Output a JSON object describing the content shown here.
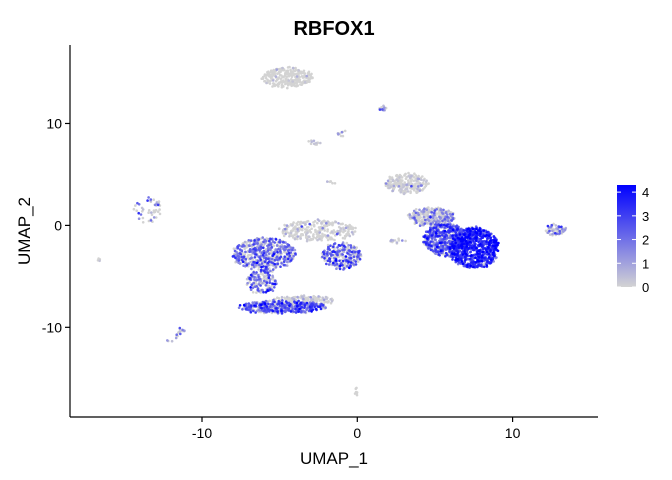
{
  "chart_data": {
    "type": "scatter",
    "title": "RBFOX1",
    "xlabel": "UMAP_1",
    "ylabel": "UMAP_2",
    "xlim": [
      -18.5,
      15.5
    ],
    "ylim": [
      -18.8,
      17.7
    ],
    "x_ticks": [
      -10,
      0,
      10
    ],
    "x_tick_labels": [
      "-10",
      "0",
      "10"
    ],
    "y_ticks": [
      -10,
      0,
      10
    ],
    "y_tick_labels": [
      "-10",
      "0",
      "10"
    ],
    "grid": false,
    "legend_position": "right",
    "color_scale": {
      "low_color": "#D3D3D3",
      "high_color": "#0000FF",
      "min": 0,
      "max": 4.3,
      "ticks": [
        0,
        1,
        2,
        3,
        4
      ],
      "tick_labels": [
        "0",
        "1",
        "2",
        "3",
        "4"
      ]
    },
    "clusters": [
      {
        "cx": -4.5,
        "cy": 14.5,
        "rx": 1.6,
        "ry": 1.0,
        "n": 260,
        "expr_mean": 0.15,
        "expr_prob": 0.05
      },
      {
        "cx": 1.7,
        "cy": 11.4,
        "rx": 0.25,
        "ry": 0.35,
        "n": 14,
        "expr_mean": 1.2,
        "expr_prob": 0.3
      },
      {
        "cx": -1.0,
        "cy": 9.0,
        "rx": 0.3,
        "ry": 0.25,
        "n": 10,
        "expr_mean": 0.8,
        "expr_prob": 0.3
      },
      {
        "cx": -2.7,
        "cy": 8.1,
        "rx": 0.45,
        "ry": 0.2,
        "n": 12,
        "expr_mean": 0.6,
        "expr_prob": 0.3
      },
      {
        "cx": -1.7,
        "cy": 4.3,
        "rx": 0.2,
        "ry": 0.25,
        "n": 6,
        "expr_mean": 0.5,
        "expr_prob": 0.3
      },
      {
        "cx": -13.5,
        "cy": 1.5,
        "rx": 0.9,
        "ry": 1.2,
        "n": 45,
        "expr_mean": 1.5,
        "expr_prob": 0.5
      },
      {
        "cx": -16.5,
        "cy": -3.4,
        "rx": 0.2,
        "ry": 0.15,
        "n": 4,
        "expr_mean": 0.5,
        "expr_prob": 0.3
      },
      {
        "cx": -6.0,
        "cy": -2.8,
        "rx": 2.0,
        "ry": 1.6,
        "n": 520,
        "expr_mean": 2.0,
        "expr_prob": 0.6
      },
      {
        "cx": -2.5,
        "cy": -0.5,
        "rx": 2.5,
        "ry": 1.0,
        "n": 280,
        "expr_mean": 0.4,
        "expr_prob": 0.15
      },
      {
        "cx": -1.0,
        "cy": -3.0,
        "rx": 1.3,
        "ry": 1.3,
        "n": 260,
        "expr_mean": 2.2,
        "expr_prob": 0.6
      },
      {
        "cx": -6.2,
        "cy": -5.5,
        "rx": 1.0,
        "ry": 1.2,
        "n": 160,
        "expr_mean": 2.0,
        "expr_prob": 0.6
      },
      {
        "cx": -4.8,
        "cy": -8.0,
        "rx": 2.8,
        "ry": 0.6,
        "n": 440,
        "expr_mean": 2.2,
        "expr_prob": 0.7
      },
      {
        "cx": -3.5,
        "cy": -7.4,
        "rx": 2.0,
        "ry": 0.5,
        "n": 160,
        "expr_mean": 0.5,
        "expr_prob": 0.2
      },
      {
        "cx": -11.5,
        "cy": -10.5,
        "rx": 0.3,
        "ry": 0.6,
        "n": 14,
        "expr_mean": 1.5,
        "expr_prob": 0.5
      },
      {
        "cx": -12.0,
        "cy": -11.4,
        "rx": 0.2,
        "ry": 0.15,
        "n": 3,
        "expr_mean": 0.5,
        "expr_prob": 0.3
      },
      {
        "cx": 0.0,
        "cy": -16.3,
        "rx": 0.2,
        "ry": 0.35,
        "n": 8,
        "expr_mean": 0.0,
        "expr_prob": 0.0
      },
      {
        "cx": 7.5,
        "cy": -2.2,
        "rx": 1.6,
        "ry": 2.0,
        "n": 820,
        "expr_mean": 3.1,
        "expr_prob": 0.95
      },
      {
        "cx": 5.7,
        "cy": -1.4,
        "rx": 1.4,
        "ry": 1.6,
        "n": 500,
        "expr_mean": 2.4,
        "expr_prob": 0.75
      },
      {
        "cx": 4.8,
        "cy": 0.8,
        "rx": 1.5,
        "ry": 0.9,
        "n": 300,
        "expr_mean": 1.2,
        "expr_prob": 0.4
      },
      {
        "cx": 3.2,
        "cy": 4.1,
        "rx": 1.4,
        "ry": 1.0,
        "n": 220,
        "expr_mean": 0.5,
        "expr_prob": 0.2
      },
      {
        "cx": 2.6,
        "cy": -1.5,
        "rx": 0.6,
        "ry": 0.2,
        "n": 16,
        "expr_mean": 0.8,
        "expr_prob": 0.3
      },
      {
        "cx": 12.8,
        "cy": -0.4,
        "rx": 0.6,
        "ry": 0.6,
        "n": 60,
        "expr_mean": 1.5,
        "expr_prob": 0.5
      }
    ]
  }
}
